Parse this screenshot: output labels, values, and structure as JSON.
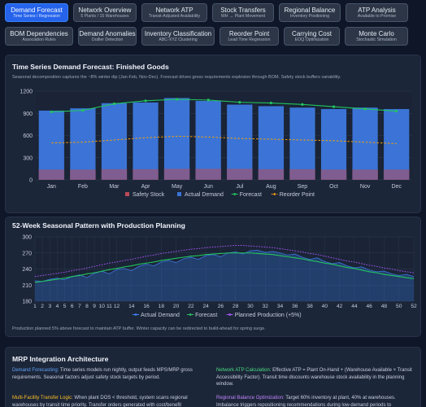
{
  "tabs": [
    {
      "title": "Demand Forecast",
      "subtitle": "Time Series / Regression",
      "active": true
    },
    {
      "title": "Network Overview",
      "subtitle": "5 Plants / 15 Warehouses",
      "active": false
    },
    {
      "title": "Network ATP",
      "subtitle": "Transit-Adjusted Availability",
      "active": false
    },
    {
      "title": "Stock Transfers",
      "subtitle": "WH → Plant Movement",
      "active": false
    },
    {
      "title": "Regional Balance",
      "subtitle": "Inventory Positioning",
      "active": false
    },
    {
      "title": "ATP Analysis",
      "subtitle": "Available to Promise",
      "active": false
    },
    {
      "title": "BOM Dependencies",
      "subtitle": "Association Rules",
      "active": false
    },
    {
      "title": "Demand Anomalies",
      "subtitle": "Outlier Detection",
      "active": false
    },
    {
      "title": "Inventory Classification",
      "subtitle": "ABC-XYZ Clustering",
      "active": false
    },
    {
      "title": "Reorder Point",
      "subtitle": "Lead Time Regression",
      "active": false
    },
    {
      "title": "Carrying Cost",
      "subtitle": "EOQ Optimization",
      "active": false
    },
    {
      "title": "Monte Carlo",
      "subtitle": "Stochastic Simulation",
      "active": false
    }
  ],
  "panel1": {
    "title": "Time Series Demand Forecast: Finished Goods",
    "subtitle": "Seasonal decomposition captures the ~8% winter dip (Jan-Feb, Nov-Dec). Forecast drives gross requirements explosion through BOM. Safety stock buffers variability."
  },
  "panel2": {
    "title": "52-Week Seasonal Pattern with Production Planning",
    "note": "Production planned 5% above forecast to maintain ATP buffer. Winter capacity can be redirected to build-ahead for spring surge."
  },
  "panel3": {
    "title": "MRP Integration Architecture",
    "items": [
      {
        "key": "Demand Forecasting:",
        "text": " Time series models run nightly, output feeds MPS/MRP gross requirements. Seasonal factors adjust safety stock targets by period.",
        "color": "#60a5fa"
      },
      {
        "key": "Network ATP Calculation:",
        "text": " Effective ATP = Plant On-Hand + (Warehouse Available × Transit Accessibility Factor). Transit time discounts warehouse stock availability in the planning window.",
        "color": "#4ade80"
      },
      {
        "key": "Multi-Facility Transfer Logic:",
        "text": " When plant DOS < threshold, system scans regional warehouses by transit time priority. Transfer orders generated with cost/benefit",
        "color": "#fbbf24"
      },
      {
        "key": "Regional Balance Optimization:",
        "text": " Target 60% inventory at plant, 40% at warehouses. Imbalance triggers repositioning recommendations during low-demand periods to",
        "color": "#c084fc"
      }
    ]
  },
  "colors": {
    "safety": "#b94a57",
    "actual": "#3b74d6",
    "forecast": "#22c55e",
    "reorder": "#f59e0b",
    "demand_area": "#3b82f6",
    "planned": "#a855f7"
  },
  "chart_data": [
    {
      "type": "bar",
      "categories": [
        "Jan",
        "Feb",
        "Mar",
        "Apr",
        "May",
        "Jun",
        "Jul",
        "Aug",
        "Sep",
        "Oct",
        "Nov",
        "Dec"
      ],
      "series": [
        {
          "name": "Safety Stock",
          "type": "bar",
          "values": [
            140,
            140,
            145,
            145,
            150,
            150,
            150,
            145,
            145,
            140,
            140,
            140
          ]
        },
        {
          "name": "Actual Demand",
          "type": "bar",
          "values": [
            940,
            970,
            1040,
            1050,
            1110,
            1070,
            1020,
            1000,
            980,
            960,
            980,
            960
          ]
        },
        {
          "name": "Forecast",
          "type": "line",
          "values": [
            920,
            940,
            1030,
            1070,
            1090,
            1080,
            1050,
            1040,
            1020,
            990,
            960,
            930
          ]
        },
        {
          "name": "Reorder Point",
          "type": "line",
          "values": [
            500,
            510,
            540,
            570,
            590,
            580,
            560,
            550,
            540,
            530,
            510,
            490
          ]
        }
      ],
      "yticks": [
        0,
        300,
        600,
        900,
        1200
      ],
      "ylim": [
        0,
        1200
      ]
    },
    {
      "type": "area",
      "x_range": [
        1,
        52
      ],
      "xticks": [
        1,
        2,
        3,
        4,
        5,
        6,
        7,
        8,
        9,
        10,
        11,
        12,
        14,
        16,
        18,
        20,
        22,
        24,
        26,
        28,
        30,
        32,
        34,
        36,
        38,
        40,
        42,
        44,
        46,
        48,
        50,
        52
      ],
      "series": [
        {
          "name": "Actual Demand",
          "values": [
            218,
            217,
            221,
            223,
            220,
            226,
            229,
            224,
            232,
            236,
            231,
            239,
            241,
            237,
            245,
            249,
            246,
            253,
            256,
            252,
            259,
            262,
            258,
            265,
            267,
            263,
            270,
            272,
            268,
            274,
            275,
            271,
            273,
            270,
            266,
            268,
            262,
            258,
            261,
            254,
            250,
            252,
            246,
            242,
            244,
            238,
            235,
            236,
            231,
            228,
            230,
            226
          ]
        },
        {
          "name": "Forecast",
          "values": [
            215,
            217,
            219,
            221,
            223,
            226,
            228,
            231,
            233,
            236,
            239,
            241,
            244,
            246,
            249,
            251,
            253,
            256,
            258,
            260,
            262,
            264,
            265,
            267,
            268,
            269,
            270,
            270,
            270,
            270,
            269,
            268,
            267,
            265,
            263,
            261,
            259,
            256,
            254,
            251,
            249,
            246,
            243,
            241,
            238,
            235,
            233,
            230,
            228,
            226,
            224,
            222
          ]
        },
        {
          "name": "Planned Production (+5%)",
          "values": [
            226,
            228,
            230,
            232,
            234,
            237,
            239,
            242,
            245,
            248,
            251,
            253,
            256,
            258,
            261,
            264,
            266,
            269,
            271,
            273,
            275,
            277,
            278,
            280,
            281,
            282,
            283,
            284,
            284,
            283,
            282,
            281,
            280,
            278,
            276,
            274,
            272,
            269,
            267,
            264,
            261,
            258,
            255,
            253,
            250,
            247,
            245,
            242,
            240,
            237,
            235,
            233
          ]
        }
      ],
      "yticks": [
        180,
        210,
        240,
        270,
        300
      ],
      "ylim": [
        180,
        300
      ]
    }
  ]
}
